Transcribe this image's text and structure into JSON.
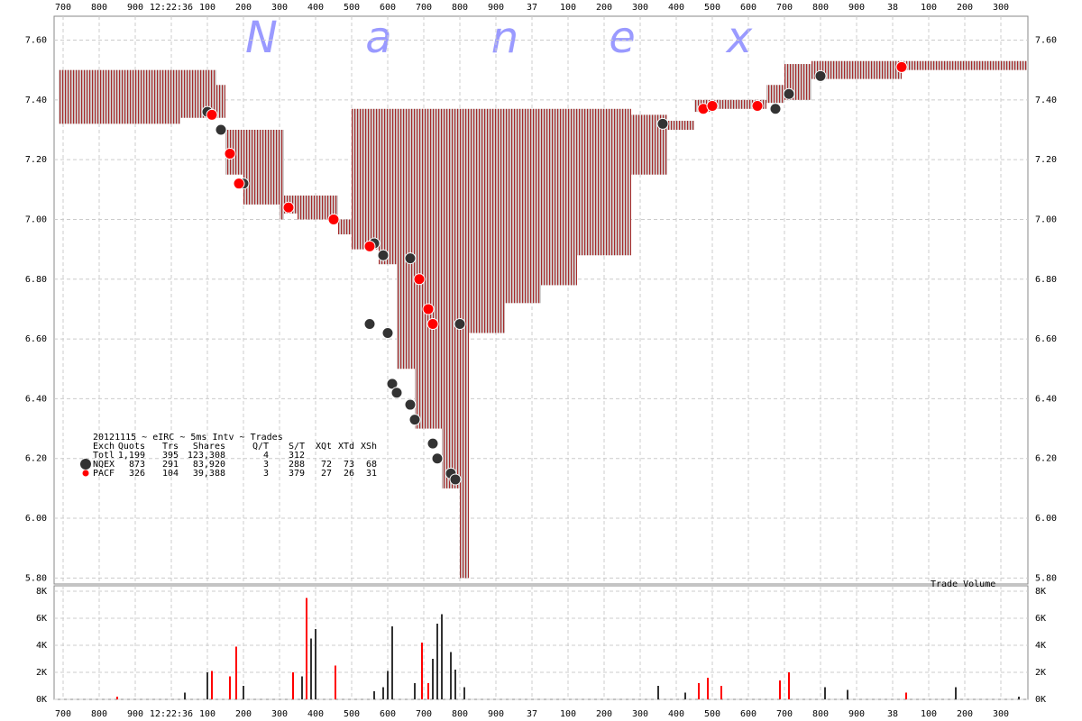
{
  "watermark": [
    "N",
    "a",
    "n",
    "e",
    "x"
  ],
  "stats": {
    "title": "20121115 ~ eIRC ~ 5ms Intv ~ Trades",
    "columns": [
      "Exch",
      "Quots",
      "Trs",
      "Shares",
      "Q/T",
      "S/T",
      "XQt",
      "XTd",
      "XSh"
    ],
    "rows": [
      [
        "Totl",
        "1,199",
        "395",
        "123,308",
        "4",
        "312",
        "",
        "",
        ""
      ],
      [
        "NQEX",
        "873",
        "291",
        "83,920",
        "3",
        "288",
        "72",
        "73",
        "68"
      ],
      [
        "PACF",
        "326",
        "104",
        "39,388",
        "3",
        "379",
        "27",
        "26",
        "31"
      ]
    ]
  },
  "chart_data": [
    {
      "type": "scatter",
      "grid": true,
      "xlim": [
        -0.25,
        26.75
      ],
      "xticks": [
        {
          "value": 0,
          "label": "700"
        },
        {
          "value": 1,
          "label": "800"
        },
        {
          "value": 2,
          "label": "900"
        },
        {
          "value": 3,
          "label": "12:22:36"
        },
        {
          "value": 4,
          "label": "100"
        },
        {
          "value": 5,
          "label": "200"
        },
        {
          "value": 6,
          "label": "300"
        },
        {
          "value": 7,
          "label": "400"
        },
        {
          "value": 8,
          "label": "500"
        },
        {
          "value": 9,
          "label": "600"
        },
        {
          "value": 10,
          "label": "700"
        },
        {
          "value": 11,
          "label": "800"
        },
        {
          "value": 12,
          "label": "900"
        },
        {
          "value": 13,
          "label": "37"
        },
        {
          "value": 14,
          "label": "100"
        },
        {
          "value": 15,
          "label": "200"
        },
        {
          "value": 16,
          "label": "300"
        },
        {
          "value": 17,
          "label": "400"
        },
        {
          "value": 18,
          "label": "500"
        },
        {
          "value": 19,
          "label": "600"
        },
        {
          "value": 20,
          "label": "700"
        },
        {
          "value": 21,
          "label": "800"
        },
        {
          "value": 22,
          "label": "900"
        },
        {
          "value": 23,
          "label": "38"
        },
        {
          "value": 24,
          "label": "100"
        },
        {
          "value": 25,
          "label": "200"
        },
        {
          "value": 26,
          "label": "300"
        }
      ],
      "ylim": [
        5.78,
        7.68
      ],
      "yticks": [
        {
          "value": 5.8,
          "label": "5.80"
        },
        {
          "value": 6.0,
          "label": "6.00"
        },
        {
          "value": 6.2,
          "label": "6.20"
        },
        {
          "value": 6.4,
          "label": "6.40"
        },
        {
          "value": 6.6,
          "label": "6.60"
        },
        {
          "value": 6.8,
          "label": "6.80"
        },
        {
          "value": 7.0,
          "label": "7.00"
        },
        {
          "value": 7.2,
          "label": "7.20"
        },
        {
          "value": 7.4,
          "label": "7.40"
        },
        {
          "value": 7.6,
          "label": "7.60"
        }
      ],
      "quotes": {
        "color": "#a52a2a",
        "x": [
          -0.125,
          3.25,
          4.25,
          4.5,
          5,
          6,
          6.125,
          6.5,
          7.625,
          8,
          8.75,
          9.25,
          9.75,
          10.5,
          11,
          11.25,
          12.25,
          13.25,
          14.25,
          15.75,
          16.75,
          17.5,
          18,
          19.5,
          20,
          20.75,
          23.25,
          26.625
        ],
        "ask": [
          7.5,
          7.5,
          7.45,
          7.3,
          7.3,
          7.3,
          7.08,
          7.08,
          7.0,
          7.37,
          7.37,
          7.37,
          7.37,
          7.37,
          7.37,
          7.37,
          7.37,
          7.37,
          7.37,
          7.35,
          7.33,
          7.4,
          7.4,
          7.45,
          7.52,
          7.53,
          7.53,
          7.53
        ],
        "bid": [
          7.32,
          7.34,
          7.34,
          7.15,
          7.05,
          7.0,
          7.02,
          7.0,
          6.95,
          6.9,
          6.85,
          6.5,
          6.3,
          6.1,
          5.8,
          6.62,
          6.72,
          6.78,
          6.88,
          7.15,
          7.3,
          7.36,
          7.37,
          7.39,
          7.4,
          7.47,
          7.5,
          7.5
        ]
      },
      "series": [
        {
          "name": "NQEX",
          "color": "#333333",
          "x": [
            4,
            4.375,
            5,
            8.5,
            8.625,
            8.875,
            9,
            9.125,
            9.25,
            9.625,
            9.75,
            10.25,
            10.375,
            10.75,
            10.875,
            11,
            9.625,
            16.625,
            19.75,
            20.125,
            21
          ],
          "values": [
            7.36,
            7.3,
            7.12,
            6.65,
            6.92,
            6.88,
            6.62,
            6.45,
            6.42,
            6.38,
            6.33,
            6.25,
            6.2,
            6.15,
            6.13,
            6.65,
            6.87,
            7.32,
            7.37,
            7.42,
            7.48
          ]
        },
        {
          "name": "PACF",
          "color": "#ff0000",
          "x": [
            4.125,
            4.625,
            4.875,
            6.25,
            7.5,
            8.5,
            9.875,
            10.125,
            10.25,
            17.75,
            18,
            19.25,
            23.25
          ],
          "values": [
            7.35,
            7.22,
            7.12,
            7.04,
            7.0,
            6.91,
            6.8,
            6.7,
            6.65,
            7.37,
            7.38,
            7.38,
            7.51
          ]
        }
      ]
    },
    {
      "type": "bar",
      "title": "Trade Volume",
      "grid": true,
      "xlim": [
        -0.25,
        26.75
      ],
      "xticks": [
        {
          "value": 0,
          "label": "700"
        },
        {
          "value": 1,
          "label": "800"
        },
        {
          "value": 2,
          "label": "900"
        },
        {
          "value": 3,
          "label": "12:22:36"
        },
        {
          "value": 4,
          "label": "100"
        },
        {
          "value": 5,
          "label": "200"
        },
        {
          "value": 6,
          "label": "300"
        },
        {
          "value": 7,
          "label": "400"
        },
        {
          "value": 8,
          "label": "500"
        },
        {
          "value": 9,
          "label": "600"
        },
        {
          "value": 10,
          "label": "700"
        },
        {
          "value": 11,
          "label": "800"
        },
        {
          "value": 12,
          "label": "900"
        },
        {
          "value": 13,
          "label": "37"
        },
        {
          "value": 14,
          "label": "100"
        },
        {
          "value": 15,
          "label": "200"
        },
        {
          "value": 16,
          "label": "300"
        },
        {
          "value": 17,
          "label": "400"
        },
        {
          "value": 18,
          "label": "500"
        },
        {
          "value": 19,
          "label": "600"
        },
        {
          "value": 20,
          "label": "700"
        },
        {
          "value": 21,
          "label": "800"
        },
        {
          "value": 22,
          "label": "900"
        },
        {
          "value": 23,
          "label": "38"
        },
        {
          "value": 24,
          "label": "100"
        },
        {
          "value": 25,
          "label": "200"
        },
        {
          "value": 26,
          "label": "300"
        }
      ],
      "ylim": [
        0,
        8400
      ],
      "yticks": [
        {
          "value": 0,
          "label": "0K"
        },
        {
          "value": 2000,
          "label": "2K"
        },
        {
          "value": 4000,
          "label": "4K"
        },
        {
          "value": 6000,
          "label": "6K"
        },
        {
          "value": 8000,
          "label": "8K"
        }
      ],
      "series": [
        {
          "name": "NQEX",
          "color": "#333333",
          "x": [
            3.375,
            4,
            5,
            6.625,
            6.875,
            7,
            8.625,
            8.875,
            9,
            9.125,
            9.75,
            10.25,
            10.375,
            10.5,
            10.75,
            10.875,
            11.125,
            16.5,
            17.25,
            21.125,
            21.75,
            24.75,
            26.5
          ],
          "values": [
            500,
            2000,
            1000,
            1700,
            4500,
            5200,
            600,
            900,
            2100,
            5400,
            1200,
            3000,
            5600,
            6300,
            3500,
            2200,
            900,
            1000,
            500,
            900,
            700,
            900,
            200
          ]
        },
        {
          "name": "PACF",
          "color": "#ff0000",
          "x": [
            1.5,
            4.125,
            4.625,
            4.8,
            6.375,
            6.75,
            7.55,
            9.95,
            10.125,
            17.625,
            17.875,
            18.25,
            19.875,
            20.125,
            23.375
          ],
          "values": [
            200,
            2100,
            1700,
            3900,
            2000,
            7500,
            2500,
            4200,
            1200,
            1200,
            1600,
            1000,
            1400,
            2000,
            500
          ]
        }
      ]
    }
  ]
}
